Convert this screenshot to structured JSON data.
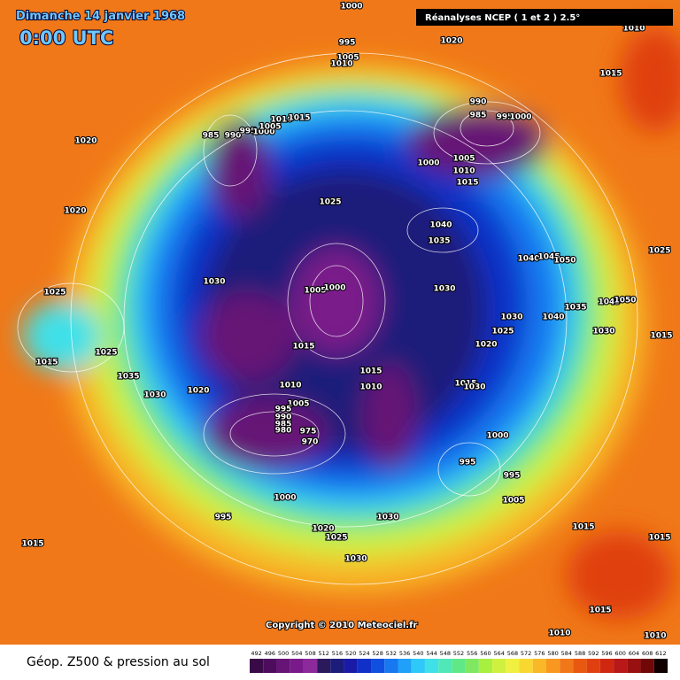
{
  "header": {
    "date": "Dimanche 14 janvier 1968",
    "time": "0:00 UTC"
  },
  "source": "Réanalyses NCEP ( 1 et 2 ) 2.5°",
  "copyright": "Copyright © 2010 Meteociel.fr",
  "isobar_labels": [
    1000,
    995,
    1005,
    1010,
    1020,
    1010,
    1015,
    990,
    985,
    995,
    1000,
    1020,
    985,
    990,
    995,
    1000,
    1005,
    1010,
    1015,
    1000,
    1005,
    1010,
    1015,
    1025,
    1020,
    1040,
    1035,
    1040,
    1045,
    1050,
    1025,
    1030,
    1005,
    1000,
    1030,
    1025,
    1030,
    1040,
    1035,
    1045,
    1050,
    1025,
    1020,
    1030,
    1015,
    1015,
    1015,
    1025,
    1035,
    1030,
    1020,
    1015,
    1010,
    1010,
    1005,
    1015,
    1030,
    995,
    990,
    985,
    980,
    975,
    970,
    1000,
    995,
    995,
    1000,
    1005,
    995,
    1030,
    1020,
    1025,
    1015,
    1030,
    1015,
    1015,
    1015,
    1010,
    1010
  ],
  "legend": {
    "title": "Géop. Z500 & pression au sol",
    "levels": [
      492,
      496,
      500,
      504,
      508,
      512,
      516,
      520,
      524,
      528,
      532,
      536,
      540,
      544,
      548,
      552,
      556,
      560,
      564,
      568,
      572,
      576,
      580,
      584,
      588,
      592,
      596,
      600,
      604,
      608,
      612
    ],
    "colors": [
      "#3a0a48",
      "#4e0c5e",
      "#661475",
      "#7a1a8a",
      "#8c2a9c",
      "#2a1a5c",
      "#1c1c7a",
      "#1a1aa8",
      "#1030c8",
      "#1050e0",
      "#1878f0",
      "#20a0f8",
      "#30c8f8",
      "#40e0e8",
      "#50e8b8",
      "#60e888",
      "#80e860",
      "#a8f040",
      "#d0f040",
      "#f0f040",
      "#f8d830",
      "#f8b828",
      "#f89820",
      "#f07818",
      "#e85810",
      "#e04010",
      "#d02810",
      "#b81818",
      "#981010",
      "#700808",
      "#100000"
    ]
  }
}
